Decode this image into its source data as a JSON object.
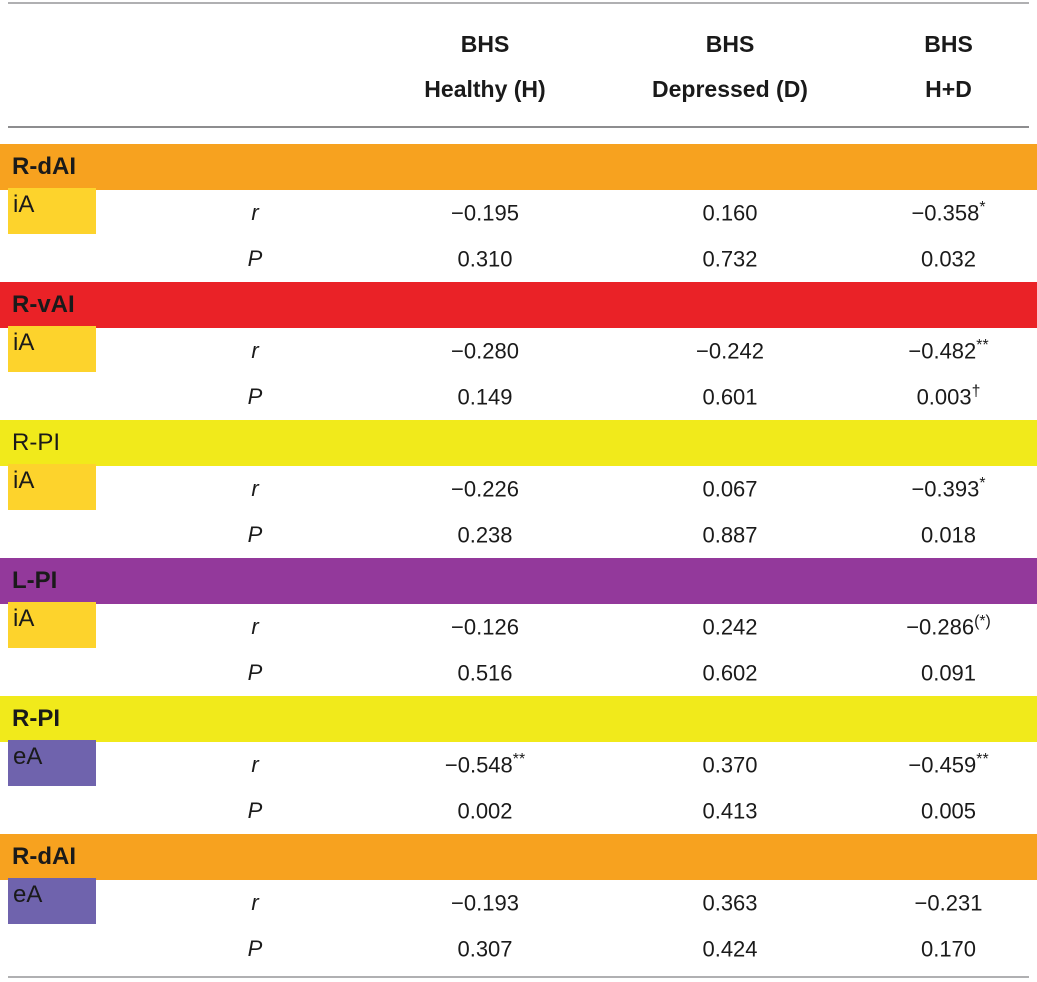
{
  "header": {
    "columns": [
      {
        "line1": "BHS",
        "line2": "Healthy (H)"
      },
      {
        "line1": "BHS",
        "line2": "Depressed (D)"
      },
      {
        "line1": "BHS",
        "line2": "H+D"
      }
    ]
  },
  "palette": {
    "orange_band": "#F7A21F",
    "red_band": "#EA2227",
    "yellow_band": "#F1EA1B",
    "purple_band": "#93399B",
    "ia_chip": "#FDD32C",
    "ea_chip": "#6F63AD"
  },
  "sections": [
    {
      "region": "R-dAI",
      "band_color": "#F7A21F",
      "seed": {
        "label": "iA",
        "color": "#FDD32C"
      },
      "rows": [
        {
          "stat": "r",
          "cells": [
            {
              "v": "−0.195",
              "sup": ""
            },
            {
              "v": "0.160",
              "sup": ""
            },
            {
              "v": "−0.358",
              "sup": "*"
            }
          ]
        },
        {
          "stat": "P",
          "cells": [
            {
              "v": "0.310",
              "sup": ""
            },
            {
              "v": "0.732",
              "sup": ""
            },
            {
              "v": "0.032",
              "sup": ""
            }
          ]
        }
      ]
    },
    {
      "region": "R-vAI",
      "band_color": "#EA2227",
      "seed": {
        "label": "iA",
        "color": "#FDD32C"
      },
      "rows": [
        {
          "stat": "r",
          "cells": [
            {
              "v": "−0.280",
              "sup": ""
            },
            {
              "v": "−0.242",
              "sup": ""
            },
            {
              "v": "−0.482",
              "sup": "**"
            }
          ]
        },
        {
          "stat": "P",
          "cells": [
            {
              "v": "0.149",
              "sup": ""
            },
            {
              "v": "0.601",
              "sup": ""
            },
            {
              "v": "0.003",
              "sup": "†"
            }
          ]
        }
      ]
    },
    {
      "region": "R-PI",
      "band_color": "#F1EA1B",
      "seed": {
        "label": "iA",
        "color": "#FDD32C"
      },
      "rows": [
        {
          "stat": "r",
          "cells": [
            {
              "v": "−0.226",
              "sup": ""
            },
            {
              "v": "0.067",
              "sup": ""
            },
            {
              "v": "−0.393",
              "sup": "*"
            }
          ]
        },
        {
          "stat": "P",
          "cells": [
            {
              "v": "0.238",
              "sup": ""
            },
            {
              "v": "0.887",
              "sup": ""
            },
            {
              "v": "0.018",
              "sup": ""
            }
          ]
        }
      ]
    },
    {
      "region": "L-PI",
      "band_color": "#93399B",
      "seed": {
        "label": "iA",
        "color": "#FDD32C"
      },
      "rows": [
        {
          "stat": "r",
          "cells": [
            {
              "v": "−0.126",
              "sup": ""
            },
            {
              "v": "0.242",
              "sup": ""
            },
            {
              "v": "−0.286",
              "sup": "(*)"
            }
          ]
        },
        {
          "stat": "P",
          "cells": [
            {
              "v": "0.516",
              "sup": ""
            },
            {
              "v": "0.602",
              "sup": ""
            },
            {
              "v": "0.091",
              "sup": ""
            }
          ]
        }
      ]
    },
    {
      "region": "R-PI",
      "band_color": "#F1EA1B",
      "seed": {
        "label": "eA",
        "color": "#6F63AD"
      },
      "rows": [
        {
          "stat": "r",
          "cells": [
            {
              "v": "−0.548",
              "sup": "**"
            },
            {
              "v": "0.370",
              "sup": ""
            },
            {
              "v": "−0.459",
              "sup": "**"
            }
          ]
        },
        {
          "stat": "P",
          "cells": [
            {
              "v": "0.002",
              "sup": ""
            },
            {
              "v": "0.413",
              "sup": ""
            },
            {
              "v": "0.005",
              "sup": ""
            }
          ]
        }
      ]
    },
    {
      "region": "R-dAI",
      "band_color": "#F7A21F",
      "seed": {
        "label": "eA",
        "color": "#6F63AD"
      },
      "rows": [
        {
          "stat": "r",
          "cells": [
            {
              "v": "−0.193",
              "sup": ""
            },
            {
              "v": "0.363",
              "sup": ""
            },
            {
              "v": "−0.231",
              "sup": ""
            }
          ]
        },
        {
          "stat": "P",
          "cells": [
            {
              "v": "0.307",
              "sup": ""
            },
            {
              "v": "0.424",
              "sup": ""
            },
            {
              "v": "0.170",
              "sup": ""
            }
          ]
        }
      ]
    }
  ]
}
